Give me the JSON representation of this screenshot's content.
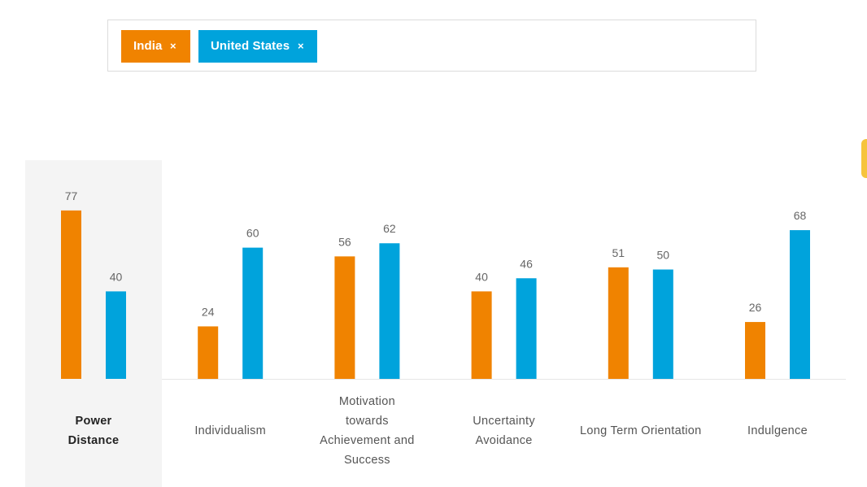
{
  "filter": {
    "chips": [
      {
        "label": "India",
        "remove": "×",
        "color": "#f08300"
      },
      {
        "label": "United States",
        "remove": "×",
        "color": "#00a3dc"
      }
    ]
  },
  "chart_data": {
    "type": "bar",
    "categories": [
      "Power Distance",
      "Individualism",
      "Motivation towards Achievement and Success",
      "Uncertainty Avoidance",
      "Long Term Orientation",
      "Indulgence"
    ],
    "series": [
      {
        "name": "India",
        "color": "#f08300",
        "values": [
          77,
          24,
          56,
          40,
          51,
          26
        ]
      },
      {
        "name": "United States",
        "color": "#00a3dc",
        "values": [
          40,
          60,
          62,
          46,
          50,
          68
        ]
      }
    ],
    "ylim": [
      0,
      100
    ],
    "highlighted_category": "Power Distance",
    "grid": false
  }
}
